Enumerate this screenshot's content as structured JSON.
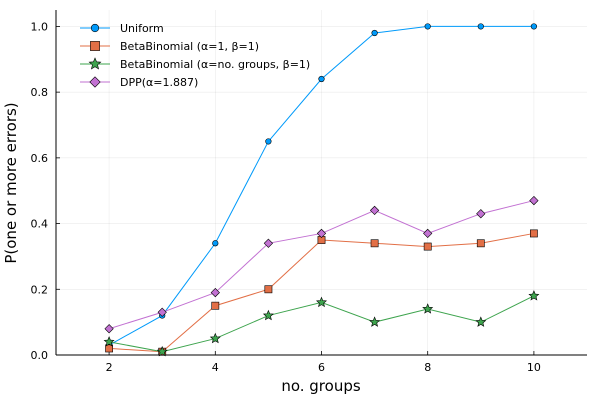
{
  "chart_data": {
    "type": "line",
    "title": "",
    "xlabel": "no. groups",
    "ylabel": "P(one or more errors)",
    "xlim": [
      1,
      11
    ],
    "ylim": [
      0,
      1.05
    ],
    "xticks": [
      2,
      4,
      6,
      8,
      10
    ],
    "yticks": [
      0.0,
      0.2,
      0.4,
      0.6,
      0.8,
      1.0
    ],
    "ytick_labels": [
      "0.0",
      "0.2",
      "0.4",
      "0.6",
      "0.8",
      "1.0"
    ],
    "grid": true,
    "legend_position": "top-left",
    "x": [
      2,
      3,
      4,
      5,
      6,
      7,
      8,
      9,
      10
    ],
    "series": [
      {
        "name": "Uniform",
        "color": "#009AFA",
        "marker": "circle",
        "values": [
          0.03,
          0.12,
          0.34,
          0.65,
          0.84,
          0.98,
          1.0,
          1.0,
          1.0
        ]
      },
      {
        "name": "BetaBinomial (α=1, β=1)",
        "color": "#E26F46",
        "marker": "square",
        "values": [
          0.02,
          0.01,
          0.15,
          0.2,
          0.35,
          0.34,
          0.33,
          0.34,
          0.37
        ]
      },
      {
        "name": "BetaBinomial (α=no. groups, β=1)",
        "color": "#3EA44E",
        "marker": "star",
        "values": [
          0.04,
          0.01,
          0.05,
          0.12,
          0.16,
          0.1,
          0.14,
          0.1,
          0.18
        ]
      },
      {
        "name": "DPP(α=1.887)",
        "color": "#C271D2",
        "marker": "diamond",
        "values": [
          0.08,
          0.13,
          0.19,
          0.34,
          0.37,
          0.44,
          0.37,
          0.43,
          0.47
        ]
      }
    ]
  }
}
